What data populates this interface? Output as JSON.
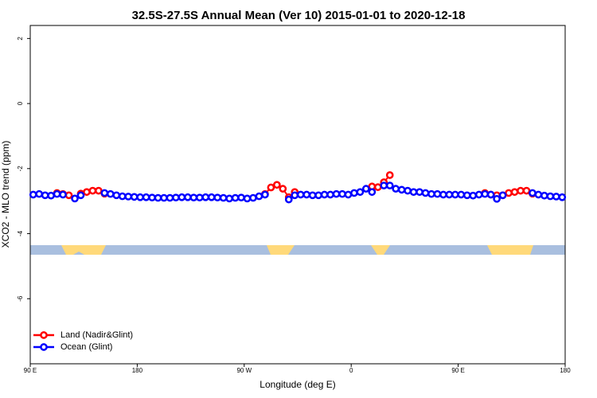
{
  "chart_data": {
    "type": "line",
    "title": "32.5S-27.5S Annual Mean (Ver 10)   2015-01-01 to 2020-12-18",
    "x_label": "Longitude (deg E)",
    "y_label": "XCO2 - MLO trend (ppm)",
    "xlim": [
      90,
      540
    ],
    "xticks": [
      {
        "value": 90,
        "label": "90 E"
      },
      180,
      {
        "value": 270,
        "label": "90 W"
      },
      {
        "value": 360,
        "label": "0"
      },
      {
        "value": 450,
        "label": "90 E"
      },
      {
        "value": 540,
        "label": "180"
      }
    ],
    "ylim": [
      -8,
      2.4
    ],
    "yticks": [
      -6,
      -4,
      -2,
      0,
      2
    ],
    "legend": "bottomleft",
    "x": [
      92.5,
      97.5,
      102.5,
      107.5,
      112.5,
      117.5,
      122.5,
      127.5,
      132.5,
      137.5,
      142.5,
      147.5,
      152.5,
      157.5,
      162.5,
      167.5,
      172.5,
      177.5,
      182.5,
      187.5,
      192.5,
      197.5,
      202.5,
      207.5,
      212.5,
      217.5,
      222.5,
      227.5,
      232.5,
      237.5,
      242.5,
      247.5,
      252.5,
      257.5,
      262.5,
      267.5,
      272.5,
      277.5,
      282.5,
      287.5,
      292.5,
      297.5,
      302.5,
      307.5,
      312.5,
      317.5,
      322.5,
      327.5,
      332.5,
      337.5,
      342.5,
      347.5,
      352.5,
      357.5,
      362.5,
      367.5,
      372.5,
      377.5,
      382.5,
      387.5,
      392.5,
      397.5,
      402.5,
      407.5,
      412.5,
      417.5,
      422.5,
      427.5,
      432.5,
      437.5,
      442.5,
      447.5,
      452.5,
      457.5,
      462.5,
      467.5,
      472.5,
      477.5,
      482.5,
      487.5,
      492.5,
      497.5,
      502.5,
      507.5,
      512.5,
      517.5,
      522.5,
      527.5,
      532.5,
      537.5
    ],
    "series": [
      {
        "name": "Land (Nadir&Glint)",
        "color": "#ff0000",
        "values": [
          null,
          null,
          null,
          null,
          -2.75,
          -2.78,
          -2.82,
          null,
          -2.77,
          -2.72,
          -2.68,
          -2.68,
          -2.77,
          null,
          null,
          null,
          null,
          null,
          null,
          null,
          null,
          null,
          null,
          null,
          null,
          null,
          null,
          null,
          null,
          null,
          null,
          null,
          null,
          null,
          null,
          null,
          null,
          null,
          null,
          -2.78,
          -2.58,
          -2.5,
          -2.62,
          -2.88,
          -2.72,
          null,
          null,
          null,
          null,
          null,
          null,
          null,
          null,
          null,
          null,
          null,
          null,
          -2.55,
          -2.57,
          -2.42,
          -2.2,
          null,
          null,
          null,
          null,
          null,
          null,
          null,
          null,
          null,
          null,
          null,
          null,
          null,
          null,
          null,
          -2.75,
          -2.8,
          -2.82,
          -2.82,
          -2.75,
          -2.72,
          -2.68,
          -2.68,
          -2.77,
          null,
          null,
          null,
          null,
          null
        ]
      },
      {
        "name": "Ocean (Glint)",
        "color": "#0000ff",
        "values": [
          -2.8,
          -2.78,
          -2.82,
          -2.83,
          -2.78,
          -2.8,
          null,
          -2.92,
          -2.82,
          null,
          null,
          null,
          -2.75,
          -2.78,
          -2.82,
          -2.85,
          -2.86,
          -2.87,
          -2.88,
          -2.88,
          -2.89,
          -2.9,
          -2.9,
          -2.9,
          -2.89,
          -2.88,
          -2.88,
          -2.89,
          -2.89,
          -2.88,
          -2.88,
          -2.89,
          -2.9,
          -2.92,
          -2.9,
          -2.89,
          -2.92,
          -2.9,
          -2.85,
          -2.8,
          null,
          null,
          null,
          -2.95,
          -2.82,
          -2.8,
          -2.8,
          -2.82,
          -2.82,
          -2.8,
          -2.8,
          -2.78,
          -2.78,
          -2.8,
          -2.75,
          -2.72,
          -2.62,
          -2.72,
          null,
          -2.52,
          -2.52,
          -2.62,
          -2.65,
          -2.68,
          -2.72,
          -2.72,
          -2.75,
          -2.78,
          -2.78,
          -2.8,
          -2.8,
          -2.8,
          -2.8,
          -2.82,
          -2.83,
          -2.8,
          -2.78,
          -2.8,
          -2.93,
          -2.82,
          null,
          null,
          null,
          null,
          -2.75,
          -2.8,
          -2.83,
          -2.85,
          -2.86,
          -2.88
        ]
      }
    ]
  }
}
